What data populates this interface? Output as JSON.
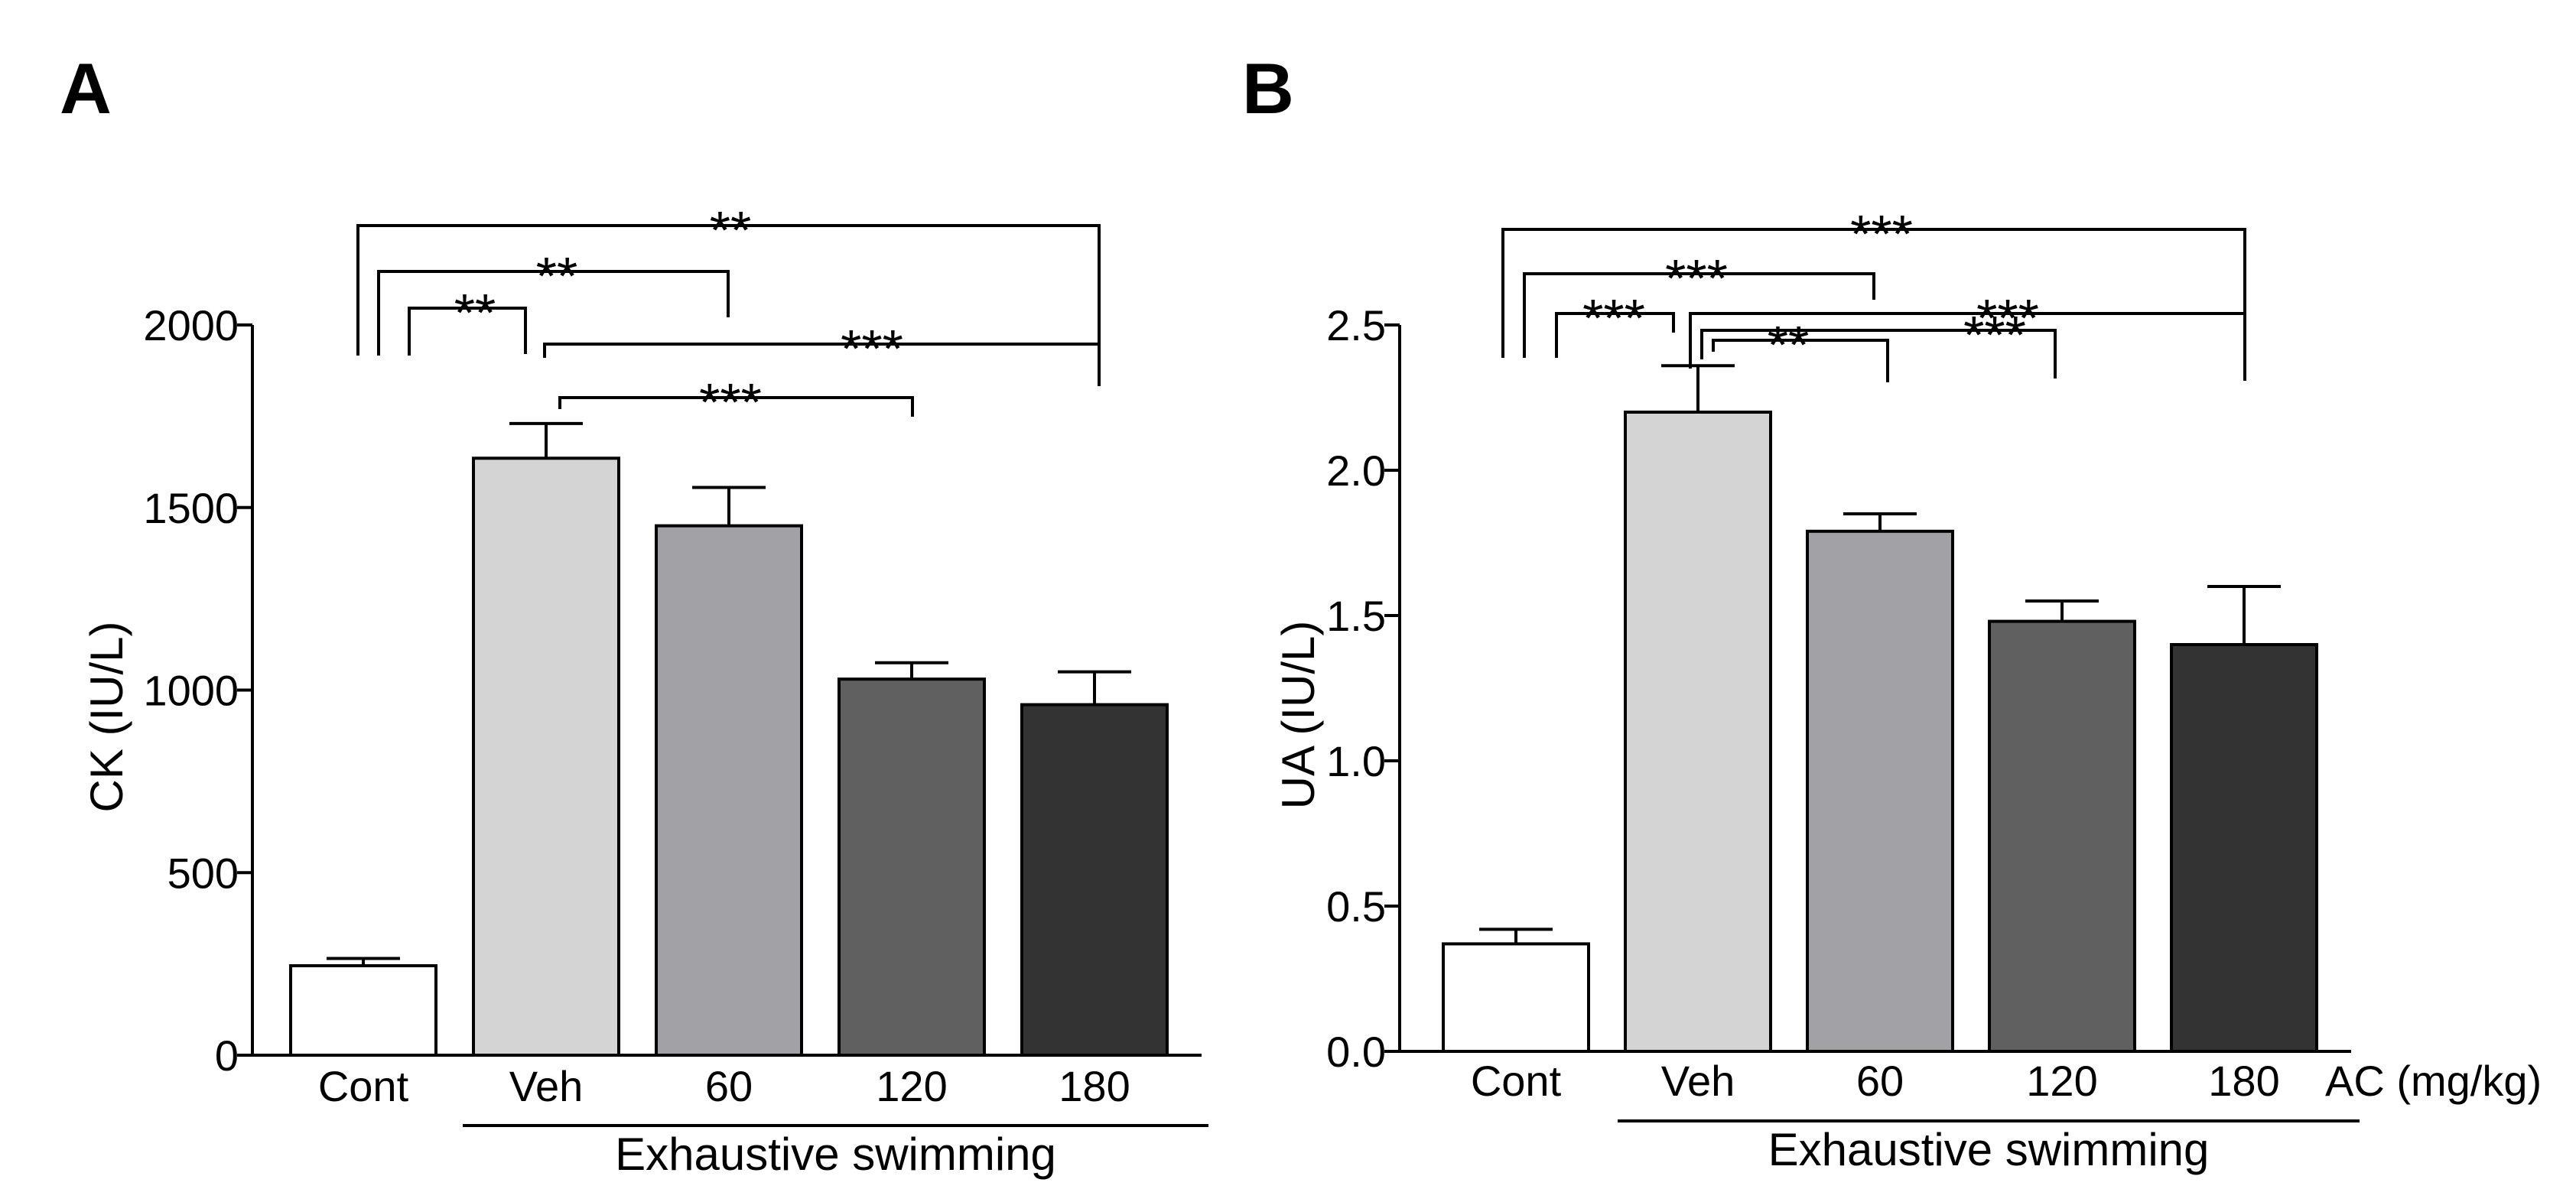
{
  "chart_data": [
    {
      "panel": "A",
      "type": "bar",
      "ylabel": "CK (IU/L)",
      "xlabel": "",
      "ylim": [
        0,
        2000
      ],
      "yticks": [
        "0",
        "500",
        "1000",
        "1500",
        "2000"
      ],
      "ytick_values": [
        0,
        500,
        1000,
        1500,
        2000
      ],
      "categories": [
        "Cont",
        "Veh",
        "60",
        "120",
        "180"
      ],
      "values": [
        245,
        1635,
        1450,
        1030,
        960
      ],
      "errors": [
        20,
        95,
        105,
        45,
        90
      ],
      "colors": [
        "#ffffff",
        "#d4d4d4",
        "#a2a2a6",
        "#606060",
        "#333333"
      ],
      "group_label": "Exhaustive swimming",
      "x_unit_label": "",
      "significance": [
        {
          "from": 0,
          "to": 4,
          "label": "**"
        },
        {
          "from": 0,
          "to": 2,
          "label": "**"
        },
        {
          "from": 0,
          "to": 1,
          "label": "**"
        },
        {
          "from": 1,
          "to": 4,
          "label": "***"
        },
        {
          "from": 1,
          "to": 3,
          "label": "***"
        }
      ]
    },
    {
      "panel": "B",
      "type": "bar",
      "ylabel": "UA (IU/L)",
      "xlabel": "",
      "ylim": [
        0,
        2.5
      ],
      "yticks": [
        "0.0",
        "0.5",
        "1.0",
        "1.5",
        "2.0",
        "2.5"
      ],
      "ytick_values": [
        0,
        0.5,
        1.0,
        1.5,
        2.0,
        2.5
      ],
      "categories": [
        "Cont",
        "Veh",
        "60",
        "120",
        "180"
      ],
      "values": [
        0.37,
        2.2,
        1.79,
        1.48,
        1.4
      ],
      "errors": [
        0.05,
        0.16,
        0.06,
        0.07,
        0.2
      ],
      "colors": [
        "#ffffff",
        "#d4d4d4",
        "#a2a2a6",
        "#606060",
        "#333333"
      ],
      "group_label": "Exhaustive swimming",
      "x_unit_label": "AC (mg/kg)",
      "significance": [
        {
          "from": 0,
          "to": 4,
          "label": "***"
        },
        {
          "from": 0,
          "to": 2,
          "label": "***"
        },
        {
          "from": 0,
          "to": 1,
          "label": "***"
        },
        {
          "from": 1,
          "to": 4,
          "label": "***"
        },
        {
          "from": 1,
          "to": 3,
          "label": "***"
        },
        {
          "from": 1,
          "to": 2,
          "label": "**"
        }
      ]
    }
  ]
}
